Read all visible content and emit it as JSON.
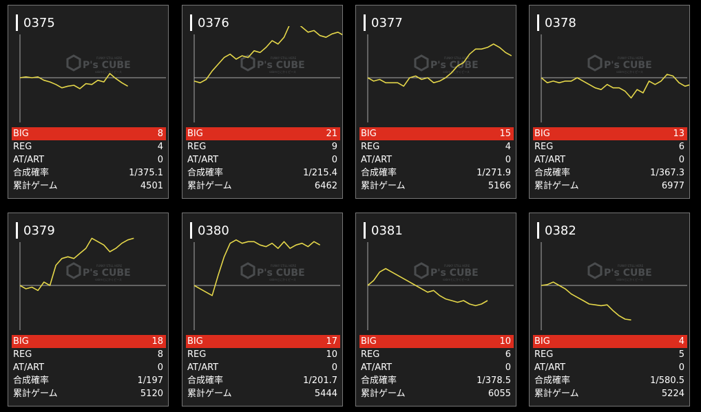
{
  "colors": {
    "page_background": "#000000",
    "card_background": "#1f1f1f",
    "card_border": "#777777",
    "big_row": "#dd2d1e",
    "graph_line": "#e6d84a",
    "axis_line": "#aaaaaa"
  },
  "labels": {
    "big": "BIG",
    "reg": "REG",
    "at_art": "AT/ART",
    "probability": "合成確率",
    "total_games": "累計ゲーム"
  },
  "watermark": {
    "brand": "P's CUBE",
    "tagline": "FUNKY STILL HERE",
    "subline": "sabreとにかくピース"
  },
  "machines": [
    {
      "number": "0375",
      "big": "8",
      "reg": "4",
      "at_art": "0",
      "probability": "1/375.1",
      "total_games": "4501",
      "chart_data": {
        "type": "line",
        "title": "",
        "xlabel": "",
        "ylabel": "",
        "grid": false,
        "values": [
          0,
          0.5,
          0,
          0.5,
          -1.5,
          -2.5,
          -4,
          -6,
          -5,
          -4.5,
          -6.5,
          -3.5,
          -4,
          -1.5,
          -2.5,
          2.5,
          -0.5,
          -3,
          -5
        ]
      }
    },
    {
      "number": "0376",
      "big": "21",
      "reg": "9",
      "at_art": "0",
      "probability": "1/215.4",
      "total_games": "6462",
      "chart_data": {
        "type": "line",
        "title": "",
        "xlabel": "",
        "ylabel": "",
        "grid": false,
        "values": [
          -2,
          -3,
          -1,
          4,
          8,
          12,
          14,
          11,
          13,
          12,
          16,
          15,
          18,
          22,
          20,
          24,
          32,
          33,
          30,
          27,
          28,
          25,
          24,
          26,
          27,
          25
        ]
      }
    },
    {
      "number": "0377",
      "big": "15",
      "reg": "4",
      "at_art": "0",
      "probability": "1/271.9",
      "total_games": "5166",
      "chart_data": {
        "type": "line",
        "title": "",
        "xlabel": "",
        "ylabel": "",
        "grid": false,
        "values": [
          0,
          -2,
          -1,
          -3,
          -3,
          -3,
          -5,
          0,
          1,
          -1,
          0,
          -3,
          -2,
          0,
          3,
          7,
          9,
          14,
          17,
          17,
          18,
          20,
          18,
          15,
          13
        ]
      }
    },
    {
      "number": "0378",
      "big": "13",
      "reg": "6",
      "at_art": "0",
      "probability": "1/367.3",
      "total_games": "6977",
      "chart_data": {
        "type": "line",
        "title": "",
        "xlabel": "",
        "ylabel": "",
        "grid": false,
        "values": [
          0,
          -3,
          -2,
          -3,
          -2,
          -2,
          0,
          -2,
          -4,
          -6,
          -7,
          -4,
          -6,
          -6,
          -8,
          -12,
          -7,
          -9,
          -2,
          -4,
          -2,
          2,
          1,
          -3,
          -5,
          -4
        ]
      }
    },
    {
      "number": "0379",
      "big": "18",
      "reg": "8",
      "at_art": "0",
      "probability": "1/197",
      "total_games": "5120",
      "chart_data": {
        "type": "line",
        "title": "",
        "xlabel": "",
        "ylabel": "",
        "grid": false,
        "values": [
          0,
          -2,
          -1,
          -3,
          2,
          0,
          12,
          16,
          17,
          16,
          19,
          22,
          28,
          26,
          24,
          20,
          22,
          25,
          27,
          28
        ]
      }
    },
    {
      "number": "0380",
      "big": "17",
      "reg": "10",
      "at_art": "0",
      "probability": "1/201.7",
      "total_games": "5444",
      "chart_data": {
        "type": "line",
        "title": "",
        "xlabel": "",
        "ylabel": "",
        "grid": false,
        "values": [
          0,
          -2,
          -4,
          -6,
          6,
          17,
          25,
          27,
          25,
          26,
          26,
          24,
          23,
          25,
          22,
          26,
          22,
          24,
          25,
          23,
          26,
          24
        ]
      }
    },
    {
      "number": "0381",
      "big": "10",
      "reg": "6",
      "at_art": "0",
      "probability": "1/378.5",
      "total_games": "6055",
      "chart_data": {
        "type": "line",
        "title": "",
        "xlabel": "",
        "ylabel": "",
        "grid": false,
        "values": [
          0,
          3,
          8,
          10,
          8,
          6,
          4,
          2,
          0,
          -2,
          -4,
          -3,
          -6,
          -8,
          -9,
          -10,
          -9,
          -11,
          -12,
          -11,
          -9
        ]
      }
    },
    {
      "number": "0382",
      "big": "4",
      "reg": "5",
      "at_art": "0",
      "probability": "1/580.5",
      "total_games": "5224",
      "chart_data": {
        "type": "line",
        "title": "",
        "xlabel": "",
        "ylabel": "",
        "grid": false,
        "values": [
          0,
          0.5,
          2,
          0,
          -2,
          -5,
          -7,
          -9,
          -11,
          -11.5,
          -12,
          -11.5,
          -15,
          -18,
          -20,
          -20.5
        ]
      }
    }
  ]
}
